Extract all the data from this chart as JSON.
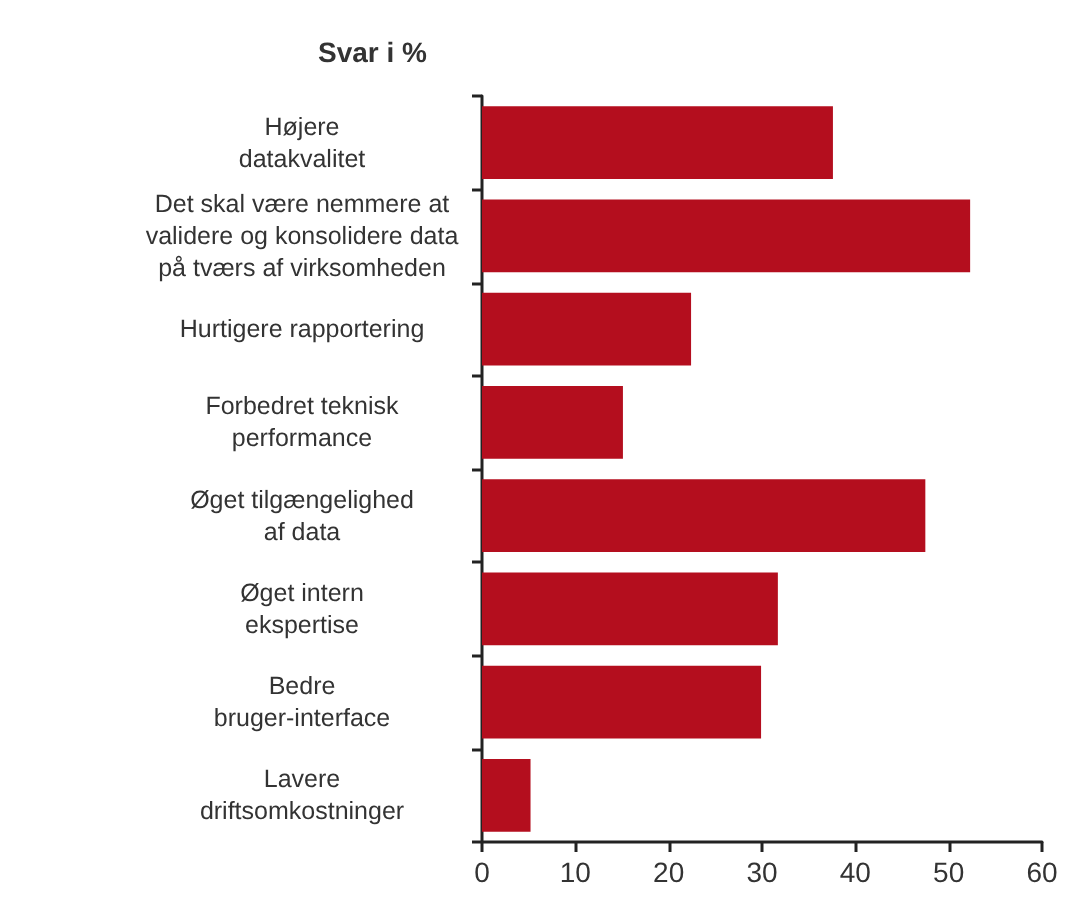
{
  "chart_data": {
    "type": "bar",
    "orientation": "horizontal",
    "title": "Svar i %",
    "categories": [
      "Højere\ndatakvalitet",
      "Det skal være nemmere at\nvalidere og konsolidere data\npå tværs af virksomheden",
      "Hurtigere rapportering",
      "Forbedret teknisk\nperformance",
      "Øget tilgængelighed\naf data",
      "Øget intern\nekspertise",
      "Bedre\nbruger-interface",
      "Lavere\ndriftsomkostninger"
    ],
    "values": [
      37.6,
      52.3,
      22.4,
      15.1,
      47.5,
      31.7,
      29.9,
      5.2
    ],
    "color": "#b40e1e",
    "xlim": [
      0,
      60
    ],
    "xticks": [
      0,
      10,
      20,
      30,
      40,
      50,
      60
    ],
    "grid": false
  }
}
